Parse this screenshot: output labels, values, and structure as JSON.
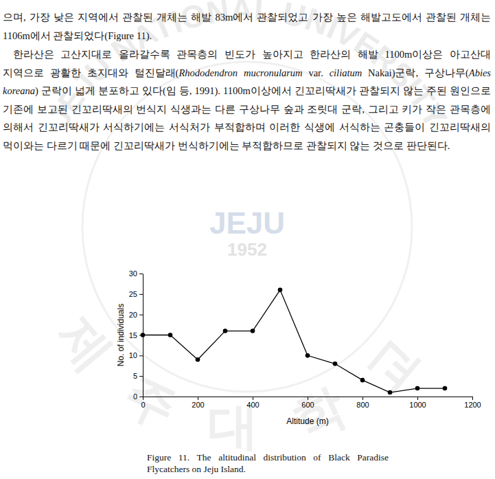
{
  "watermark": {
    "ring_top": "JEJU NATIONAL UNIVERSITY",
    "ring_bottom": "제주대학교",
    "center": "JEJU",
    "year": "1952"
  },
  "document": {
    "paragraphs": [
      [
        "으며, 가장 낮은 지역에서 관찰된 개체는 해발 83m에서 관찰되었고 가장 높은 해발고도에서 관찰된 개체는 1106m에서 관찰되었다(Figure 11)."
      ],
      [
        "한라산은 고산지대로 올라갈수록 관목층의 빈도가 높아지고 한라산의 해발 1100m이상은 아고산대 지역으로 광활한 초지대와 털진달래(",
        "Rhododendron mucronularum",
        " var. ",
        "ciliatum",
        " Nakai)군락, 구상나무(",
        "Abies koreana",
        ") 군락이 넓게 분포하고 있다(임 등, 1991). 1100m이상에서 긴꼬리딱새가 관찰되지 않는 주된 원인으로 기존에 보고된 긴꼬리딱새의 번식지 식생과는 다른 구상나무 숲과 조릿대 군락, 그리고 키가 작은 관목층에 의해서 긴꼬리딱새가 서식하기에는 서식처가 부적합하며 이러한 식생에 서식하는 곤충들이 긴꼬리딱새의 먹이와는 다르기 때문에 긴꼬리딱새가 번식하기에는 부적합하므로 관찰되지 않는 것으로 판단된다."
      ]
    ]
  },
  "chart_data": {
    "type": "line",
    "title": "Figure 11. The altitudinal distribution of Black Paradise Flycatchers on Jeju Island.",
    "x_label": "Altitude (m)",
    "y_label": "No. of individuals",
    "x": [
      0,
      100,
      200,
      300,
      400,
      500,
      600,
      700,
      800,
      900,
      1000,
      1100
    ],
    "values": [
      15,
      15,
      9,
      16,
      16,
      26,
      10,
      8,
      4,
      1,
      2,
      2
    ],
    "color": "#000000",
    "marker": "circle",
    "line_style": "solid",
    "grid": false,
    "xlim": [
      0,
      1200
    ],
    "xticks": [
      0,
      200,
      400,
      600,
      800,
      1000,
      1200
    ],
    "ylim": [
      0,
      30
    ],
    "yticks": [
      0,
      5,
      10,
      15,
      20,
      25,
      30
    ]
  }
}
